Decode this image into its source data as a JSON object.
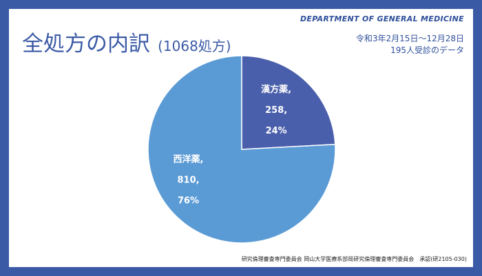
{
  "header": {
    "department": "DEPARTMENT OF GENERAL MEDICINE",
    "title": "全処方の内訳",
    "subtitle": "(1068処方)",
    "period": "令和3年2月15日～12月28日",
    "patients": "195人受診のデータ"
  },
  "footer": {
    "approval": "研究倫理審査専門委員会 岡山大学医療系部局研究倫理審査専門委員会　承認(研2105-030)"
  },
  "colors": {
    "frame": "#3b5aa6",
    "kampo": "#4a5fab",
    "western": "#5b9bd5"
  },
  "chart_data": {
    "type": "pie",
    "title": "全処方の内訳",
    "total": 1068,
    "slices": [
      {
        "name": "漢方薬",
        "value": 258,
        "percent": "24%",
        "value_label": "258,",
        "name_label": "漢方薬,",
        "color": "#4a5fab"
      },
      {
        "name": "西洋薬",
        "value": 810,
        "percent": "76%",
        "value_label": "810,",
        "name_label": "西洋薬,",
        "color": "#5b9bd5"
      }
    ]
  }
}
